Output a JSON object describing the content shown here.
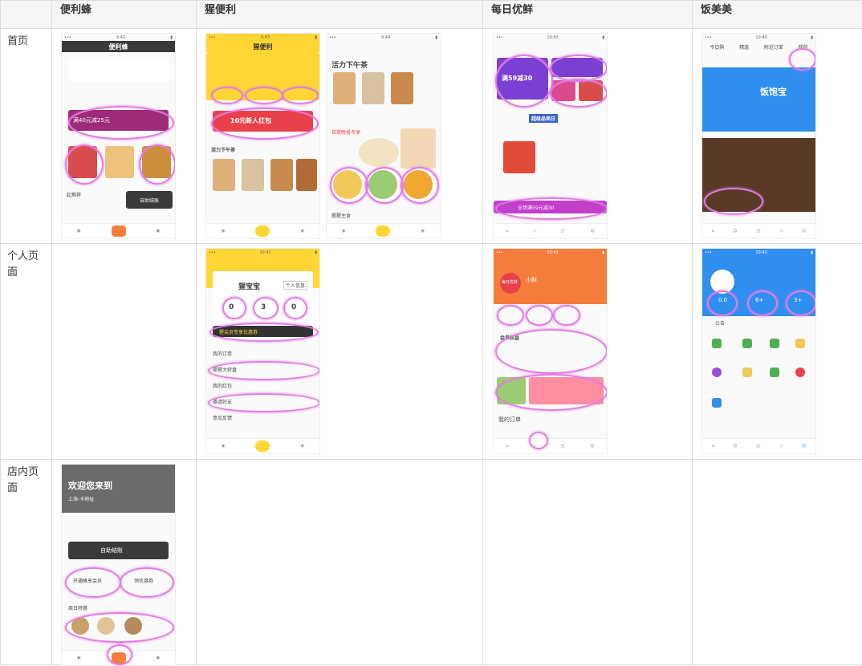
{
  "header": {
    "corner": "",
    "col1": "便利蜂",
    "col2": "猩便利",
    "col3": "每日优鲜",
    "col4": "饭美美"
  },
  "rows": {
    "home": "首页",
    "personal": "个人页面",
    "store": "店内页面"
  },
  "bianlifeng": {
    "home_title": "便利蜂",
    "home_banner": "满40元减25元",
    "home_section": "起推荐",
    "home_pay_btn": "自助结账",
    "store_welcome": "欢迎您来到",
    "store_addr": "上海-卡地址",
    "store_selfpay": "自助结账",
    "store_member": "开通蜂享会员",
    "store_coupon": "领优惠券",
    "store_section": "周日特惠"
  },
  "xingbianli": {
    "home_title": "猩便利",
    "home_redpacket": "10元新人红包",
    "home_section1": "活力下午茶",
    "home_section2": "活力下午茶",
    "home_section3": "自提晚餐专享",
    "home_section4": "猩猩主食",
    "personal_name": "猩宝宝",
    "personal_info_btn": "个人信息",
    "personal_stats": [
      "0",
      "3",
      "0"
    ],
    "personal_vip": "猩会员专享优惠券",
    "personal_menu": [
      "我的订单",
      "猩猩大转盘",
      "我的红包",
      "邀请好友",
      "意见反馈"
    ]
  },
  "meiriyouxian": {
    "home_banner": "满59减30",
    "home_section": "超级品类日",
    "home_bottom": "全场满59元减30",
    "personal_logo": "每日优鲜",
    "personal_name": "小鲜",
    "personal_section": "会员权益",
    "personal_orders": "我的订单"
  },
  "fanmeimei": {
    "home_brand": "饭饱宝",
    "home_tabs": [
      "今日购",
      "精选",
      "附近订单",
      "我的"
    ],
    "personal_stats": [
      "0.0",
      "6+",
      "3+"
    ],
    "personal_notice": "公告"
  },
  "colors": {
    "highlight": "#e37be6",
    "bianlifeng": "#3a3a3a",
    "xingbianli": "#ffd633",
    "meiriyouxian": "#f47d3b",
    "fanmeimei": "#2f8fef"
  }
}
